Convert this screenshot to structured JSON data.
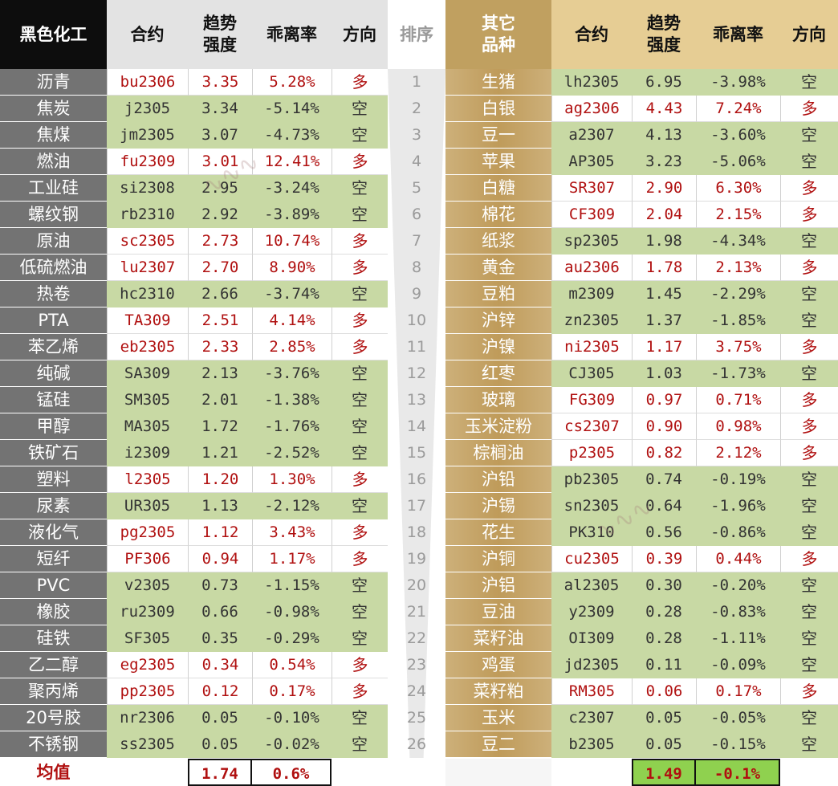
{
  "headers": {
    "left_group": "黑色化工",
    "contract": "合约",
    "trend_l1": "趋势",
    "trend_l2": "强度",
    "deviation": "乖离率",
    "direction": "方向",
    "rank": "排序",
    "right_group_l1": "其它",
    "right_group_l2": "品种",
    "r_contract": "合约",
    "r_trend_l1": "趋势",
    "r_trend_l2": "强度",
    "r_deviation": "乖离率",
    "r_direction": "方向"
  },
  "left_rows": [
    {
      "name": "沥青",
      "contract": "bu2306",
      "strength": "3.35",
      "deviation": "5.28%",
      "direction": "多"
    },
    {
      "name": "焦炭",
      "contract": "j2305",
      "strength": "3.34",
      "deviation": "-5.14%",
      "direction": "空"
    },
    {
      "name": "焦煤",
      "contract": "jm2305",
      "strength": "3.07",
      "deviation": "-4.73%",
      "direction": "空"
    },
    {
      "name": "燃油",
      "contract": "fu2309",
      "strength": "3.01",
      "deviation": "12.41%",
      "direction": "多"
    },
    {
      "name": "工业硅",
      "contract": "si2308",
      "strength": "2.95",
      "deviation": "-3.24%",
      "direction": "空"
    },
    {
      "name": "螺纹钢",
      "contract": "rb2310",
      "strength": "2.92",
      "deviation": "-3.89%",
      "direction": "空"
    },
    {
      "name": "原油",
      "contract": "sc2305",
      "strength": "2.73",
      "deviation": "10.74%",
      "direction": "多"
    },
    {
      "name": "低硫燃油",
      "contract": "lu2307",
      "strength": "2.70",
      "deviation": "8.90%",
      "direction": "多"
    },
    {
      "name": "热卷",
      "contract": "hc2310",
      "strength": "2.66",
      "deviation": "-3.74%",
      "direction": "空"
    },
    {
      "name": "PTA",
      "contract": "TA309",
      "strength": "2.51",
      "deviation": "4.14%",
      "direction": "多"
    },
    {
      "name": "苯乙烯",
      "contract": "eb2305",
      "strength": "2.33",
      "deviation": "2.85%",
      "direction": "多"
    },
    {
      "name": "纯碱",
      "contract": "SA309",
      "strength": "2.13",
      "deviation": "-3.76%",
      "direction": "空"
    },
    {
      "name": "锰硅",
      "contract": "SM305",
      "strength": "2.01",
      "deviation": "-1.38%",
      "direction": "空"
    },
    {
      "name": "甲醇",
      "contract": "MA305",
      "strength": "1.72",
      "deviation": "-1.76%",
      "direction": "空"
    },
    {
      "name": "铁矿石",
      "contract": "i2309",
      "strength": "1.21",
      "deviation": "-2.52%",
      "direction": "空"
    },
    {
      "name": "塑料",
      "contract": "l2305",
      "strength": "1.20",
      "deviation": "1.30%",
      "direction": "多"
    },
    {
      "name": "尿素",
      "contract": "UR305",
      "strength": "1.13",
      "deviation": "-2.12%",
      "direction": "空"
    },
    {
      "name": "液化气",
      "contract": "pg2305",
      "strength": "1.12",
      "deviation": "3.43%",
      "direction": "多"
    },
    {
      "name": "短纤",
      "contract": "PF306",
      "strength": "0.94",
      "deviation": "1.17%",
      "direction": "多"
    },
    {
      "name": "PVC",
      "contract": "v2305",
      "strength": "0.73",
      "deviation": "-1.15%",
      "direction": "空"
    },
    {
      "name": "橡胶",
      "contract": "ru2309",
      "strength": "0.66",
      "deviation": "-0.98%",
      "direction": "空"
    },
    {
      "name": "硅铁",
      "contract": "SF305",
      "strength": "0.35",
      "deviation": "-0.29%",
      "direction": "空"
    },
    {
      "name": "乙二醇",
      "contract": "eg2305",
      "strength": "0.34",
      "deviation": "0.54%",
      "direction": "多"
    },
    {
      "name": "聚丙烯",
      "contract": "pp2305",
      "strength": "0.12",
      "deviation": "0.17%",
      "direction": "多"
    },
    {
      "name": "20号胶",
      "contract": "nr2306",
      "strength": "0.05",
      "deviation": "-0.10%",
      "direction": "空"
    },
    {
      "name": "不锈钢",
      "contract": "ss2305",
      "strength": "0.05",
      "deviation": "-0.02%",
      "direction": "空"
    }
  ],
  "ranks": [
    "1",
    "2",
    "3",
    "4",
    "5",
    "6",
    "7",
    "8",
    "9",
    "10",
    "11",
    "12",
    "13",
    "14",
    "15",
    "16",
    "17",
    "18",
    "19",
    "20",
    "21",
    "22",
    "23",
    "24",
    "25",
    "26"
  ],
  "right_rows": [
    {
      "name": "生猪",
      "contract": "lh2305",
      "strength": "6.95",
      "deviation": "-3.98%",
      "direction": "空"
    },
    {
      "name": "白银",
      "contract": "ag2306",
      "strength": "4.43",
      "deviation": "7.24%",
      "direction": "多"
    },
    {
      "name": "豆一",
      "contract": "a2307",
      "strength": "4.13",
      "deviation": "-3.60%",
      "direction": "空"
    },
    {
      "name": "苹果",
      "contract": "AP305",
      "strength": "3.23",
      "deviation": "-5.06%",
      "direction": "空"
    },
    {
      "name": "白糖",
      "contract": "SR307",
      "strength": "2.90",
      "deviation": "6.30%",
      "direction": "多"
    },
    {
      "name": "棉花",
      "contract": "CF309",
      "strength": "2.04",
      "deviation": "2.15%",
      "direction": "多"
    },
    {
      "name": "纸浆",
      "contract": "sp2305",
      "strength": "1.98",
      "deviation": "-4.34%",
      "direction": "空"
    },
    {
      "name": "黄金",
      "contract": "au2306",
      "strength": "1.78",
      "deviation": "2.13%",
      "direction": "多"
    },
    {
      "name": "豆粕",
      "contract": "m2309",
      "strength": "1.45",
      "deviation": "-2.29%",
      "direction": "空"
    },
    {
      "name": "沪锌",
      "contract": "zn2305",
      "strength": "1.37",
      "deviation": "-1.85%",
      "direction": "空"
    },
    {
      "name": "沪镍",
      "contract": "ni2305",
      "strength": "1.17",
      "deviation": "3.75%",
      "direction": "多"
    },
    {
      "name": "红枣",
      "contract": "CJ305",
      "strength": "1.03",
      "deviation": "-1.73%",
      "direction": "空"
    },
    {
      "name": "玻璃",
      "contract": "FG309",
      "strength": "0.97",
      "deviation": "0.71%",
      "direction": "多"
    },
    {
      "name": "玉米淀粉",
      "contract": "cs2307",
      "strength": "0.90",
      "deviation": "0.98%",
      "direction": "多"
    },
    {
      "name": "棕榈油",
      "contract": "p2305",
      "strength": "0.82",
      "deviation": "2.12%",
      "direction": "多"
    },
    {
      "name": "沪铅",
      "contract": "pb2305",
      "strength": "0.74",
      "deviation": "-0.19%",
      "direction": "空"
    },
    {
      "name": "沪锡",
      "contract": "sn2305",
      "strength": "0.64",
      "deviation": "-1.96%",
      "direction": "空"
    },
    {
      "name": "花生",
      "contract": "PK310",
      "strength": "0.56",
      "deviation": "-0.86%",
      "direction": "空"
    },
    {
      "name": "沪铜",
      "contract": "cu2305",
      "strength": "0.39",
      "deviation": "0.44%",
      "direction": "多"
    },
    {
      "name": "沪铝",
      "contract": "al2305",
      "strength": "0.30",
      "deviation": "-0.20%",
      "direction": "空"
    },
    {
      "name": "豆油",
      "contract": "y2309",
      "strength": "0.28",
      "deviation": "-0.83%",
      "direction": "空"
    },
    {
      "name": "菜籽油",
      "contract": "OI309",
      "strength": "0.28",
      "deviation": "-1.11%",
      "direction": "空"
    },
    {
      "name": "鸡蛋",
      "contract": "jd2305",
      "strength": "0.11",
      "deviation": "-0.09%",
      "direction": "空"
    },
    {
      "name": "菜籽粕",
      "contract": "RM305",
      "strength": "0.06",
      "deviation": "0.17%",
      "direction": "多"
    },
    {
      "name": "玉米",
      "contract": "c2307",
      "strength": "0.05",
      "deviation": "-0.05%",
      "direction": "空"
    },
    {
      "name": "豆二",
      "contract": "b2305",
      "strength": "0.05",
      "deviation": "-0.15%",
      "direction": "空"
    }
  ],
  "footer": {
    "avg_label": "均值",
    "left_avg_strength": "1.74",
    "left_avg_deviation": "0.6%",
    "right_avg_strength": "1.49",
    "right_avg_deviation": "-0.1%"
  },
  "colors": {
    "black_header": "#0d0d0d",
    "left_name_bg": "#737373",
    "gold": "#c0a060",
    "gold_light": "#e6cd94",
    "green_cell": "#c8d9a4",
    "red_text": "#b01010",
    "avg_green": "#8fd14f"
  }
}
